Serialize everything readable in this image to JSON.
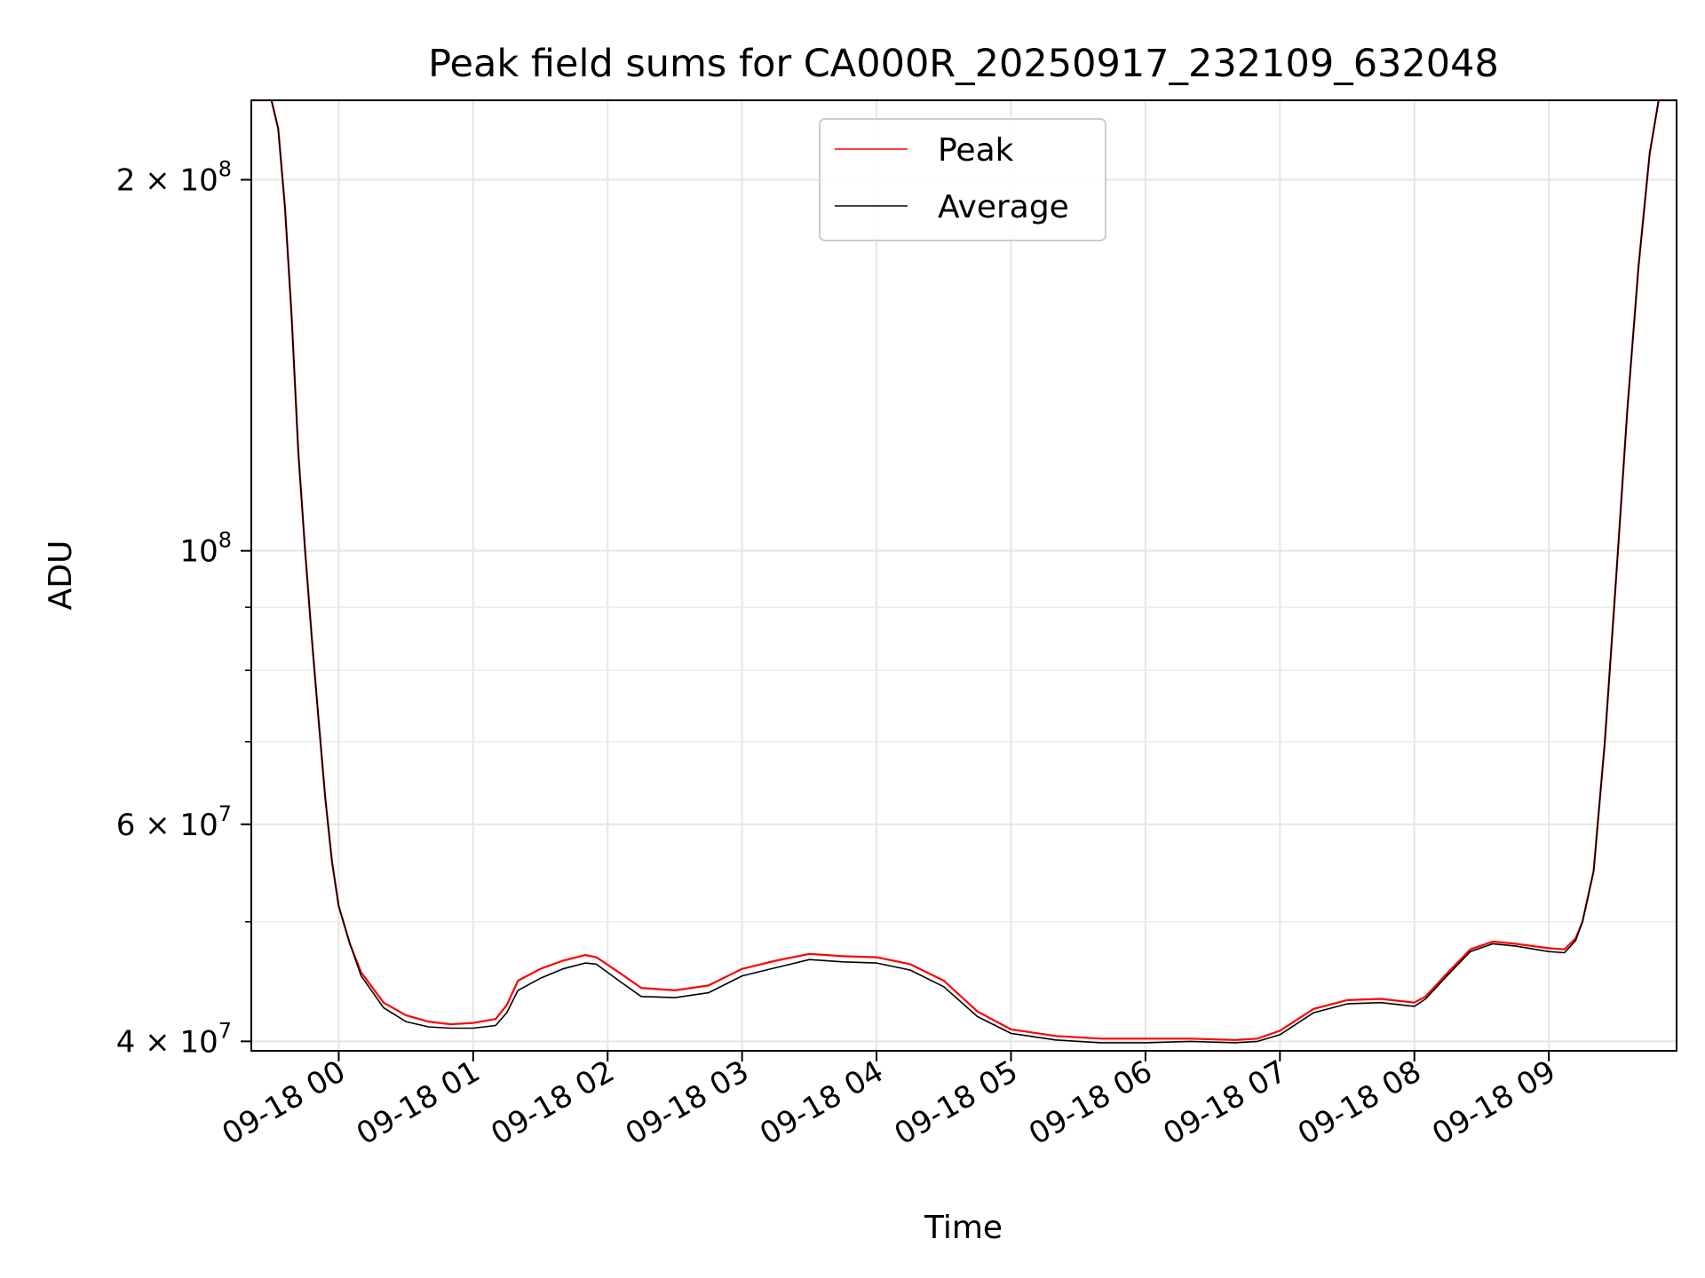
{
  "chart_data": {
    "type": "line",
    "title": "Peak field sums for CA000R_20250917_232109_632048",
    "xlabel": "Time",
    "ylabel": "ADU",
    "yscale": "log",
    "xlim": [
      "2025-09-17 23:21",
      "2025-09-18 09:57"
    ],
    "ylim": [
      39300000,
      232000000
    ],
    "grid": true,
    "legend_position": "upper center",
    "x_ticks": [
      "09-18 00",
      "09-18 01",
      "09-18 02",
      "09-18 03",
      "09-18 04",
      "09-18 05",
      "09-18 06",
      "09-18 07",
      "09-18 08",
      "09-18 09"
    ],
    "x_tick_times": [
      "2025-09-18 00:00",
      "2025-09-18 01:00",
      "2025-09-18 02:00",
      "2025-09-18 03:00",
      "2025-09-18 04:00",
      "2025-09-18 05:00",
      "2025-09-18 06:00",
      "2025-09-18 07:00",
      "2025-09-18 08:00",
      "2025-09-18 09:00"
    ],
    "y_ticks": [
      {
        "value": 40000000,
        "mantissa": "4",
        "exponent": "7"
      },
      {
        "value": 60000000,
        "mantissa": "6",
        "exponent": "7"
      },
      {
        "value": 100000000,
        "mantissa": "",
        "exponent": "8"
      },
      {
        "value": 200000000,
        "mantissa": "2",
        "exponent": "8"
      }
    ],
    "y_minor_ticks": [
      50000000,
      70000000,
      80000000,
      90000000
    ],
    "x": [
      "2025-09-17 23:21",
      "2025-09-17 23:30",
      "2025-09-17 23:33",
      "2025-09-17 23:36",
      "2025-09-17 23:39",
      "2025-09-17 23:42",
      "2025-09-17 23:45",
      "2025-09-17 23:48",
      "2025-09-17 23:51",
      "2025-09-17 23:54",
      "2025-09-17 23:57",
      "2025-09-18 00:00",
      "2025-09-18 00:05",
      "2025-09-18 00:10",
      "2025-09-18 00:20",
      "2025-09-18 00:30",
      "2025-09-18 00:40",
      "2025-09-18 00:50",
      "2025-09-18 01:00",
      "2025-09-18 01:10",
      "2025-09-18 01:15",
      "2025-09-18 01:20",
      "2025-09-18 01:30",
      "2025-09-18 01:40",
      "2025-09-18 01:50",
      "2025-09-18 01:55",
      "2025-09-18 02:05",
      "2025-09-18 02:15",
      "2025-09-18 02:30",
      "2025-09-18 02:45",
      "2025-09-18 03:00",
      "2025-09-18 03:15",
      "2025-09-18 03:30",
      "2025-09-18 03:45",
      "2025-09-18 04:00",
      "2025-09-18 04:15",
      "2025-09-18 04:30",
      "2025-09-18 04:45",
      "2025-09-18 05:00",
      "2025-09-18 05:20",
      "2025-09-18 05:40",
      "2025-09-18 06:00",
      "2025-09-18 06:20",
      "2025-09-18 06:40",
      "2025-09-18 06:50",
      "2025-09-18 07:00",
      "2025-09-18 07:15",
      "2025-09-18 07:30",
      "2025-09-18 07:45",
      "2025-09-18 08:00",
      "2025-09-18 08:05",
      "2025-09-18 08:15",
      "2025-09-18 08:25",
      "2025-09-18 08:35",
      "2025-09-18 08:45",
      "2025-09-18 09:00",
      "2025-09-18 09:07",
      "2025-09-18 09:12",
      "2025-09-18 09:15",
      "2025-09-18 09:20",
      "2025-09-18 09:25",
      "2025-09-18 09:30",
      "2025-09-18 09:35",
      "2025-09-18 09:40",
      "2025-09-18 09:45",
      "2025-09-18 09:49",
      "2025-09-18 09:57"
    ],
    "series": [
      {
        "name": "Peak",
        "color": "#ff0000",
        "values": [
          232000000,
          232000000,
          220000000,
          190000000,
          155000000,
          120000000,
          100000000,
          85000000,
          73000000,
          63000000,
          56000000,
          51500000,
          48000000,
          45500000,
          43000000,
          42000000,
          41500000,
          41300000,
          41400000,
          41700000,
          42800000,
          44800000,
          45800000,
          46500000,
          47000000,
          46800000,
          45500000,
          44200000,
          44000000,
          44400000,
          45800000,
          46500000,
          47100000,
          46900000,
          46800000,
          46200000,
          44800000,
          42300000,
          40900000,
          40400000,
          40200000,
          40200000,
          40200000,
          40100000,
          40200000,
          40800000,
          42500000,
          43200000,
          43300000,
          43000000,
          43500000,
          45500000,
          47500000,
          48200000,
          48000000,
          47600000,
          47500000,
          48500000,
          50000000,
          55000000,
          70000000,
          95000000,
          130000000,
          170000000,
          210000000,
          232000000,
          232000000
        ]
      },
      {
        "name": "Average",
        "color": "#000000",
        "values": [
          232000000,
          232000000,
          220000000,
          190000000,
          155000000,
          120000000,
          100000000,
          85000000,
          73000000,
          63000000,
          56000000,
          51500000,
          48000000,
          45200000,
          42600000,
          41500000,
          41100000,
          41000000,
          41000000,
          41200000,
          42200000,
          44000000,
          45000000,
          45800000,
          46300000,
          46200000,
          44800000,
          43500000,
          43400000,
          43800000,
          45200000,
          45900000,
          46600000,
          46400000,
          46300000,
          45700000,
          44300000,
          41900000,
          40600000,
          40100000,
          39900000,
          39900000,
          40000000,
          39900000,
          40000000,
          40500000,
          42200000,
          42900000,
          43000000,
          42700000,
          43300000,
          45300000,
          47300000,
          48000000,
          47800000,
          47300000,
          47200000,
          48300000,
          50000000,
          55000000,
          70000000,
          95000000,
          130000000,
          170000000,
          210000000,
          232000000,
          232000000
        ]
      }
    ]
  }
}
